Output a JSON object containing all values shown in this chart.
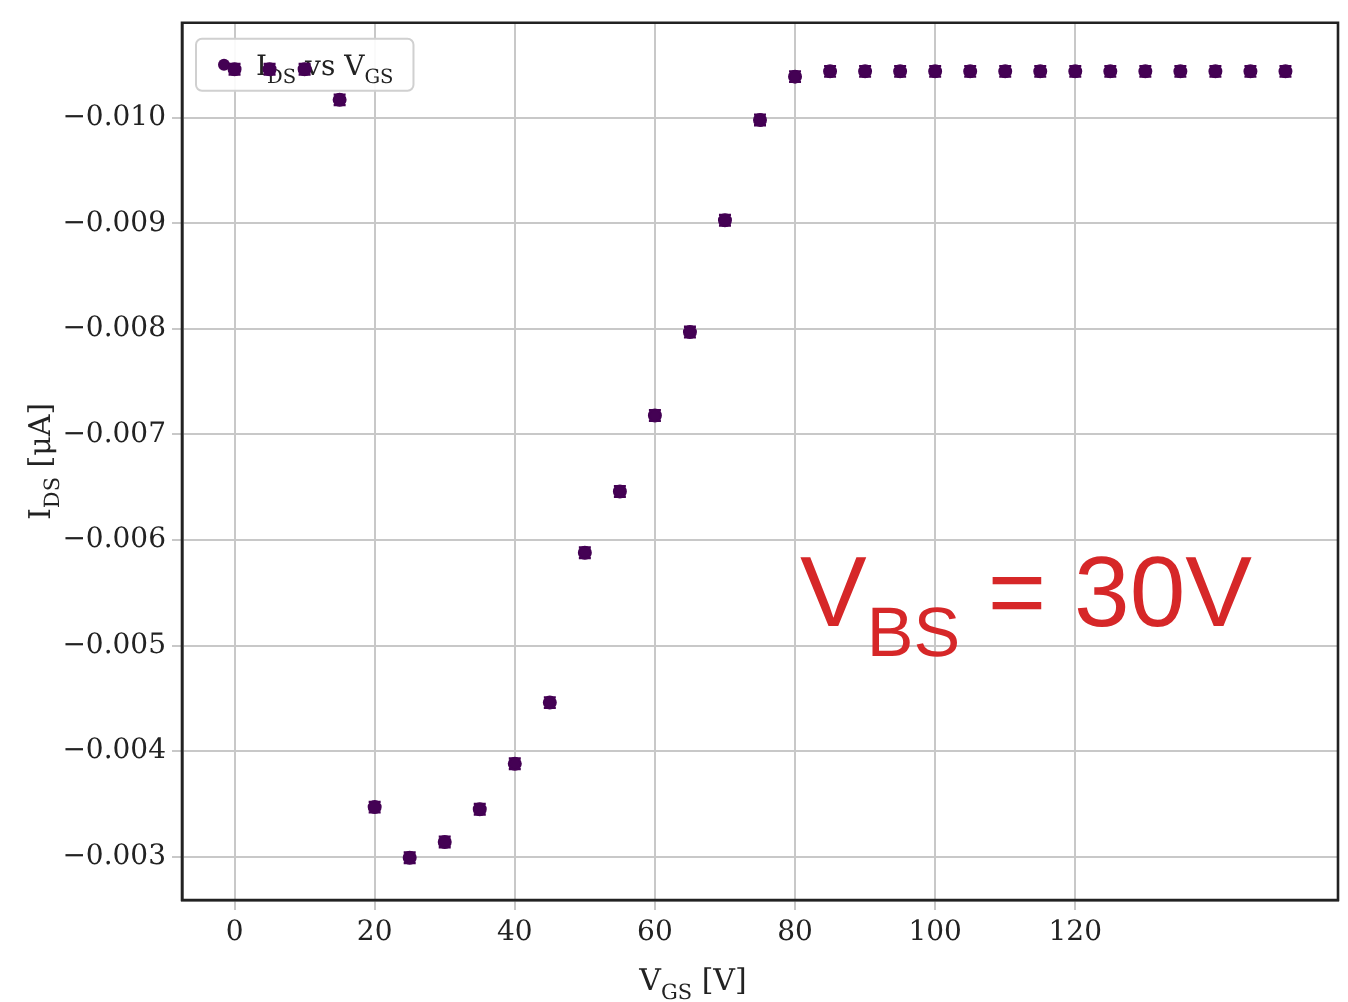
{
  "chart_data": {
    "type": "scatter",
    "xlabel": "V$_{GS}$ [V]",
    "ylabel": "I$_{DS}$ [μA]",
    "x": [
      0,
      5,
      10,
      15,
      20,
      25,
      30,
      35,
      40,
      45,
      50,
      55,
      60,
      65,
      70,
      75,
      80,
      85,
      90,
      95,
      100,
      105,
      110,
      115,
      120,
      125,
      130,
      135,
      140,
      145,
      150
    ],
    "series": [
      {
        "name": "I$_{DS}$ vs V$_{GS}$",
        "color": "#440154",
        "values": [
          -0.01046,
          -0.01046,
          -0.01046,
          -0.01017,
          -0.00347,
          -0.00299,
          -0.00314,
          -0.00345,
          -0.00388,
          -0.00446,
          -0.00588,
          -0.00646,
          -0.00718,
          -0.00797,
          -0.00903,
          -0.00998,
          -0.01039,
          -0.01044,
          -0.01044,
          -0.01044,
          -0.01044,
          -0.01044,
          -0.01044,
          -0.01044,
          -0.01044,
          -0.01044,
          -0.01044,
          -0.01044,
          -0.01044,
          -0.01044,
          -0.01044
        ],
        "errors": [
          5e-05,
          5e-05,
          5e-05,
          5e-05,
          5e-05,
          5e-05,
          5e-05,
          5e-05,
          5e-05,
          5e-05,
          5e-05,
          5e-05,
          5e-05,
          5e-05,
          5e-05,
          5e-05,
          5e-05,
          5e-05,
          5e-05,
          5e-05,
          5e-05,
          5e-05,
          5e-05,
          5e-05,
          5e-05,
          5e-05,
          5e-05,
          5e-05,
          5e-05,
          5e-05,
          5e-05
        ]
      }
    ],
    "xlim": [
      -7.5,
      157.5
    ],
    "xticks": [
      0,
      20,
      40,
      60,
      80,
      100,
      120
    ],
    "ylim": [
      -0.00259,
      -0.0109
    ],
    "yticks": [
      {
        "value": -0.003,
        "label": "−0.003"
      },
      {
        "value": -0.004,
        "label": "−0.004"
      },
      {
        "value": -0.005,
        "label": "−0.005"
      },
      {
        "value": -0.006,
        "label": "−0.006"
      },
      {
        "value": -0.007,
        "label": "−0.007"
      },
      {
        "value": -0.008,
        "label": "−0.008"
      },
      {
        "value": -0.009,
        "label": "−0.009"
      },
      {
        "value": -0.01,
        "label": "−0.010"
      }
    ],
    "grid": true,
    "legend": "top left",
    "annotations": [
      "V$_{BS}$ = 30V"
    ]
  }
}
